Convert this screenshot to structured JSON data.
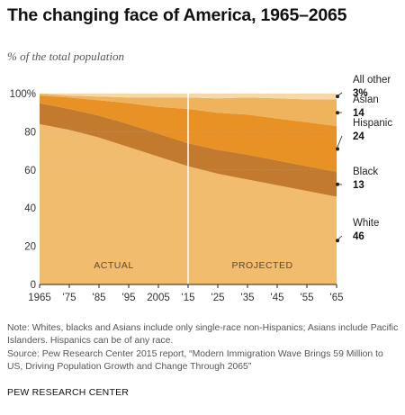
{
  "title": "The changing face of America, 1965–2065",
  "subtitle": "% of the total population",
  "chart_data": {
    "type": "area",
    "stacked": true,
    "x": [
      1965,
      1975,
      1985,
      1995,
      2005,
      2015,
      2025,
      2035,
      2045,
      2055,
      2065
    ],
    "x_tick_labels": [
      "1965",
      "'75",
      "'85",
      "'95",
      "2005",
      "'15",
      "'25",
      "'35",
      "'45",
      "'55",
      "'65"
    ],
    "y_ticks": [
      0,
      20,
      40,
      60,
      80,
      100
    ],
    "y_tick_labels": [
      "0",
      "20",
      "40",
      "60",
      "80",
      "100%"
    ],
    "ylim": [
      0,
      100
    ],
    "divider_x": 2015,
    "panel_labels": [
      "ACTUAL",
      "PROJECTED"
    ],
    "series": [
      {
        "name": "White",
        "end_label": "46",
        "color": "#F2BC6E",
        "values": [
          84,
          81,
          77,
          72,
          67,
          62,
          58,
          55,
          52,
          49,
          46
        ]
      },
      {
        "name": "Black",
        "end_label": "13",
        "color": "#C27A2E",
        "values": [
          11,
          11,
          11.5,
          12,
          12,
          12,
          12.5,
          13,
          13,
          13,
          13
        ]
      },
      {
        "name": "Hispanic",
        "end_label": "24",
        "color": "#E89125",
        "values": [
          4,
          6,
          8,
          11,
          14,
          18,
          19.5,
          21,
          22,
          23,
          24
        ]
      },
      {
        "name": "Asian",
        "end_label": "14",
        "color": "#F0B35D",
        "values": [
          1,
          1,
          2,
          3,
          5,
          6,
          7.5,
          9,
          10.5,
          12,
          14
        ]
      },
      {
        "name": "All other",
        "end_label": "3%",
        "color": "#F7D9A8",
        "values": [
          0,
          1,
          1.5,
          2,
          2,
          2,
          2.5,
          2,
          2.5,
          3,
          3
        ]
      }
    ]
  },
  "note": "Note: Whites, blacks and Asians include only single-race non-Hispanics; Asians include Pacific Islanders. Hispanics can be of any race.",
  "source": "Source: Pew Research Center 2015 report, “Modern Immigration Wave Brings 59 Million to US, Driving Population Growth and Change Through 2065”",
  "footer": "PEW RESEARCH CENTER"
}
